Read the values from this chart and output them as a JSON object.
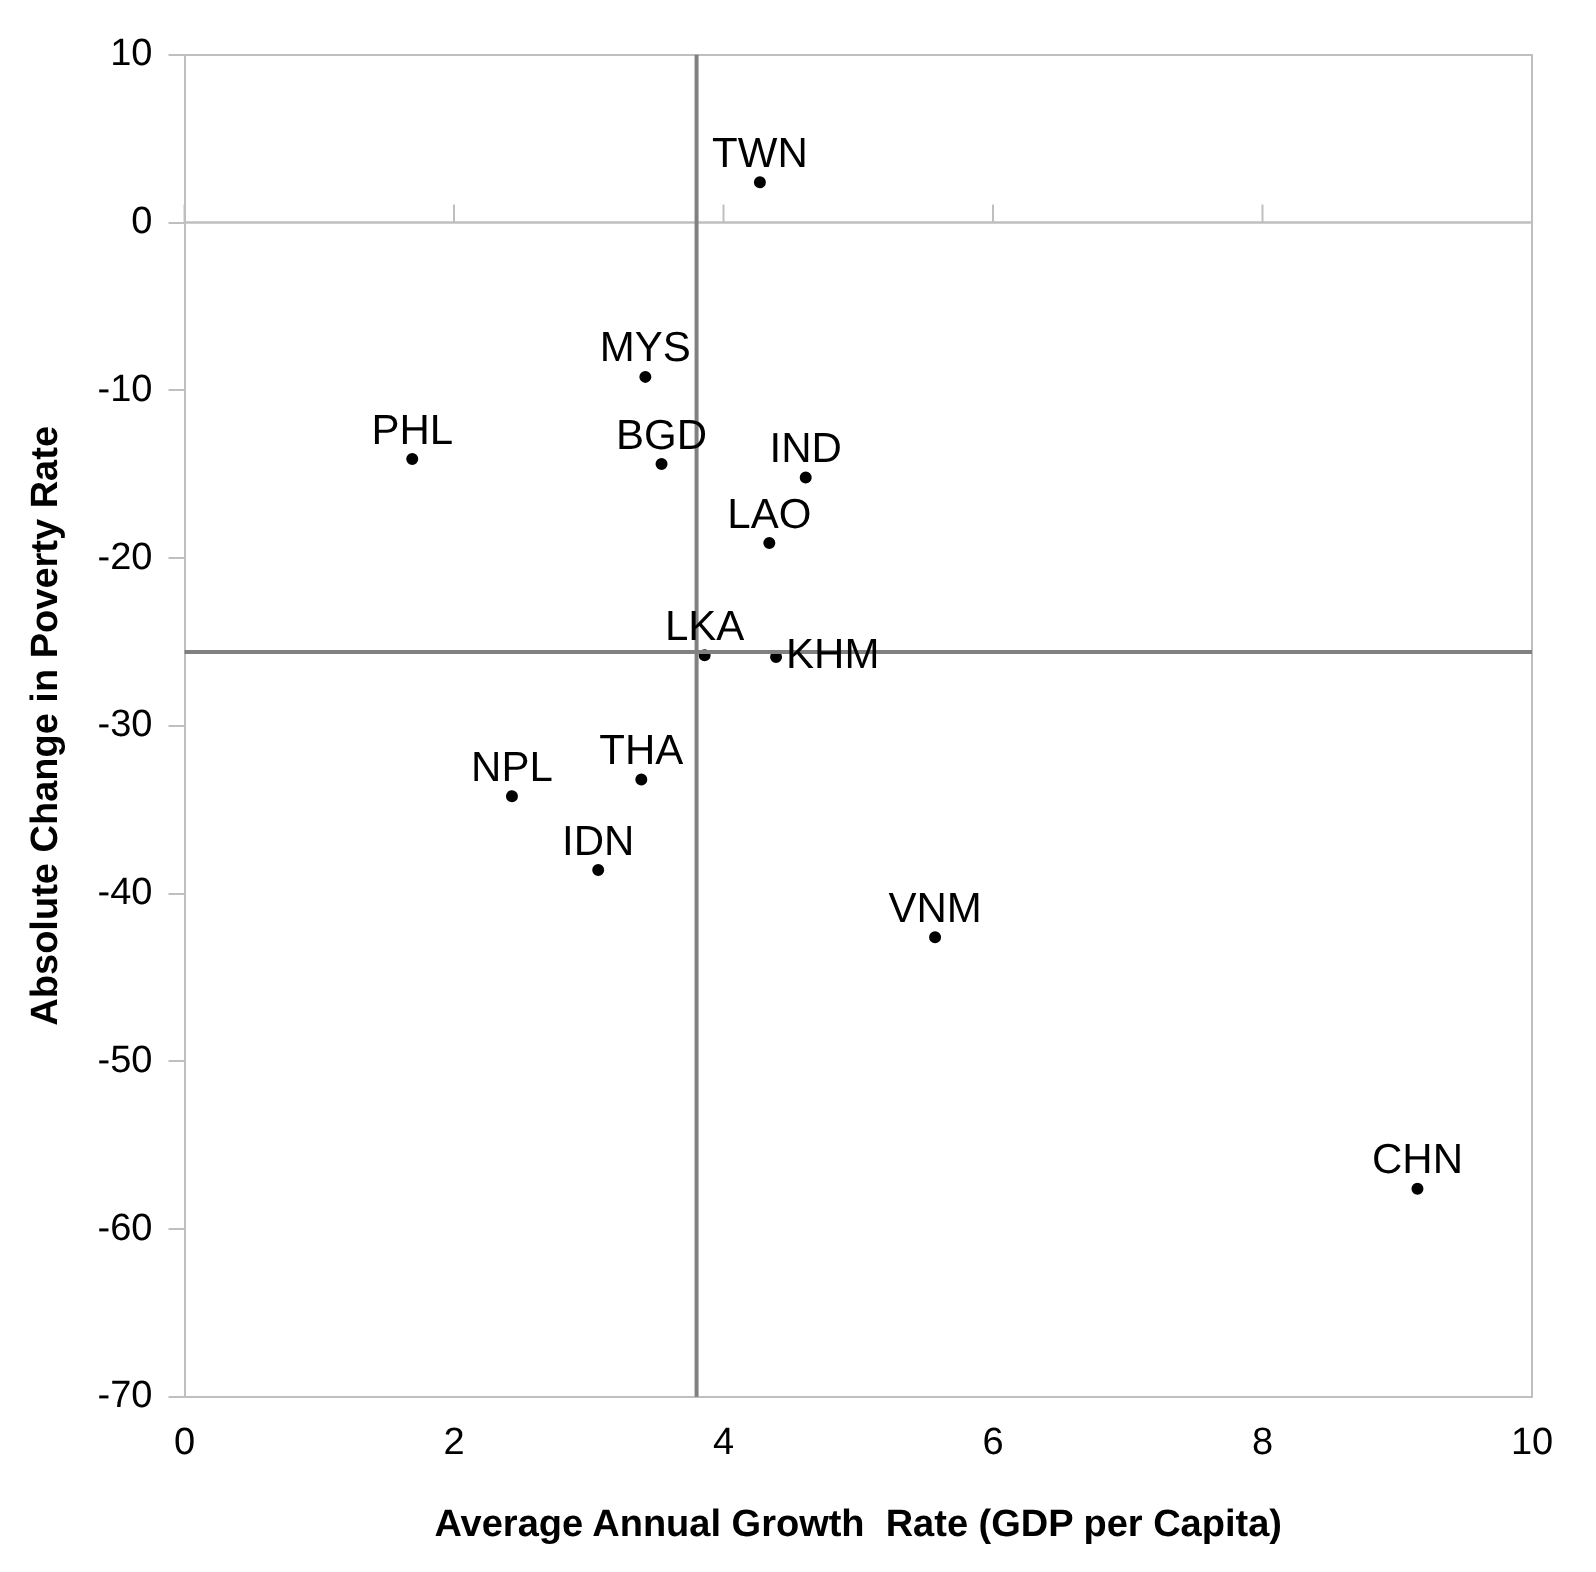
{
  "chart_data": {
    "type": "scatter",
    "xlabel": "Average Annual Growth  Rate (GDP per Capita)",
    "ylabel": "Absolute Change in Poverty Rate",
    "xlim": [
      0,
      10
    ],
    "xticks": [
      0,
      2,
      4,
      6,
      8,
      10
    ],
    "ylim": [
      -70,
      10
    ],
    "yticks": [
      -70,
      -60,
      -50,
      -40,
      -30,
      -20,
      -10,
      0,
      10
    ],
    "grid": false,
    "legend": false,
    "marker": "circle",
    "ref_lines": [
      {
        "axis": "y",
        "value": 0,
        "color": "#bfbfbf"
      },
      {
        "axis": "x",
        "value": 3.8,
        "color": "#808080"
      },
      {
        "axis": "y",
        "value": -25.6,
        "color": "#808080"
      }
    ],
    "series": [
      {
        "name": "TWN",
        "color": "#000000",
        "x": [
          4.27
        ],
        "values": [
          2.4
        ]
      },
      {
        "name": "MYS",
        "color": "#000000",
        "x": [
          3.42
        ],
        "values": [
          -9.2
        ]
      },
      {
        "name": "PHL",
        "color": "#000000",
        "x": [
          1.69
        ],
        "values": [
          -14.1
        ]
      },
      {
        "name": "BGD",
        "color": "#000000",
        "x": [
          3.54
        ],
        "values": [
          -14.4
        ]
      },
      {
        "name": "IND",
        "color": "#000000",
        "x": [
          4.61
        ],
        "values": [
          -15.2
        ]
      },
      {
        "name": "LAO",
        "color": "#000000",
        "x": [
          4.34
        ],
        "values": [
          -19.1
        ]
      },
      {
        "name": "LKA",
        "color": "#000000",
        "x": [
          3.86
        ],
        "values": [
          -25.8
        ]
      },
      {
        "name": "KHM",
        "color": "#000000",
        "x": [
          4.39
        ],
        "values": [
          -25.9
        ]
      },
      {
        "name": "THA",
        "color": "#000000",
        "x": [
          3.39
        ],
        "values": [
          -33.2
        ]
      },
      {
        "name": "NPL",
        "color": "#000000",
        "x": [
          2.43
        ],
        "values": [
          -34.2
        ]
      },
      {
        "name": "IDN",
        "color": "#000000",
        "x": [
          3.07
        ],
        "values": [
          -38.6
        ]
      },
      {
        "name": "VNM",
        "color": "#000000",
        "x": [
          5.57
        ],
        "values": [
          -42.6
        ]
      },
      {
        "name": "CHN",
        "color": "#000000",
        "x": [
          9.15
        ],
        "values": [
          -57.6
        ]
      }
    ]
  }
}
